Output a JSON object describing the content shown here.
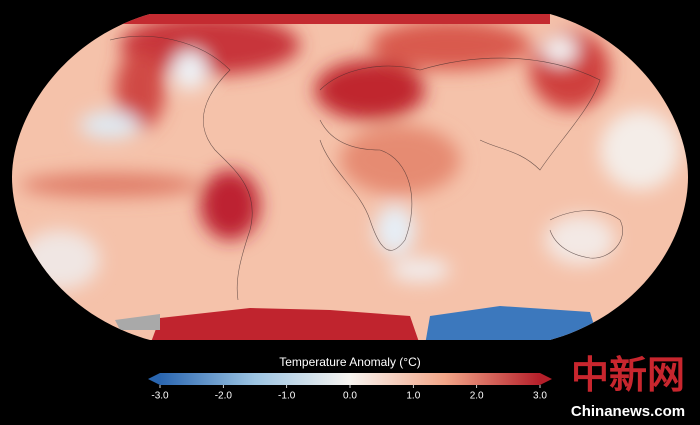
{
  "map": {
    "colorbar": {
      "title": "Temperature Anomaly (°C)",
      "clim": [
        -3,
        3
      ],
      "colormap": [
        "#2a66b0",
        "#9cc4e2",
        "#f7f4f0",
        "#f2a588",
        "#b51f2a"
      ],
      "ticks": [
        {
          "value": -3,
          "label": "-3.0"
        },
        {
          "value": -2,
          "label": "-2.0"
        },
        {
          "value": -1,
          "label": "-1.0"
        },
        {
          "value": 0,
          "label": "0.0"
        },
        {
          "value": 1,
          "label": "1.0"
        },
        {
          "value": 2,
          "label": "2.0"
        },
        {
          "value": 3,
          "label": "3.0"
        }
      ]
    }
  },
  "watermark": {
    "logo": "中新网",
    "site": "Chinanews.com"
  }
}
